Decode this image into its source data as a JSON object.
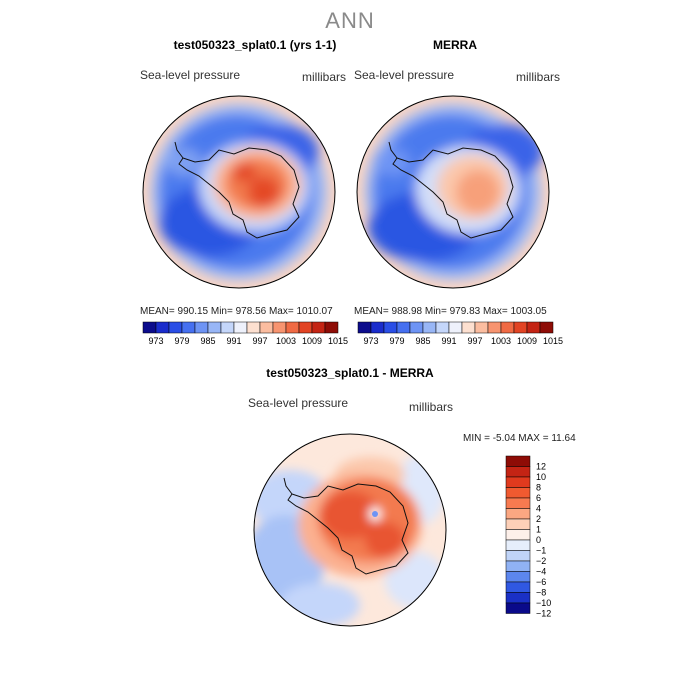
{
  "main_title": "ANN",
  "panels": [
    {
      "title": "test050323_splat0.1 (yrs 1-1)",
      "variable": "Sea-level pressure",
      "units": "millibars",
      "stats": "MEAN= 990.15  Min= 978.56  Max= 1010.07"
    },
    {
      "title": "MERRA",
      "variable": "Sea-level pressure",
      "units": "millibars",
      "stats": "MEAN= 988.98  Min= 979.83  Max= 1003.05"
    },
    {
      "title": "test050323_splat0.1 - MERRA",
      "variable": "Sea-level pressure",
      "units": "millibars",
      "stats": "MIN =  -5.04 MAX =  11.64"
    }
  ],
  "colorbar_top": {
    "labels": [
      "973",
      "979",
      "985",
      "991",
      "997",
      "1003",
      "1009",
      "1015"
    ],
    "colors": [
      "#0c0c8c",
      "#1a2ccc",
      "#2a4ee6",
      "#4670f0",
      "#6e94f4",
      "#98b6f6",
      "#c4d6fa",
      "#eef1fb",
      "#fde0d0",
      "#fbbda0",
      "#f79470",
      "#f06a44",
      "#e24424",
      "#c42414",
      "#8e0c06"
    ]
  },
  "colorbar_diff": {
    "labels": [
      "12",
      "10",
      "8",
      "6",
      "4",
      "2",
      "1",
      "0",
      "−1",
      "−2",
      "−4",
      "−6",
      "−8",
      "−10",
      "−12"
    ],
    "colors": [
      "#8e0c06",
      "#c42414",
      "#e03a1e",
      "#f05a30",
      "#f77a50",
      "#fba782",
      "#fdd0b8",
      "#fdf0ea",
      "#e6eefb",
      "#c0d4f8",
      "#90b2f4",
      "#5c86ee",
      "#3058e2",
      "#1a30c6",
      "#0a0a8a"
    ]
  }
}
